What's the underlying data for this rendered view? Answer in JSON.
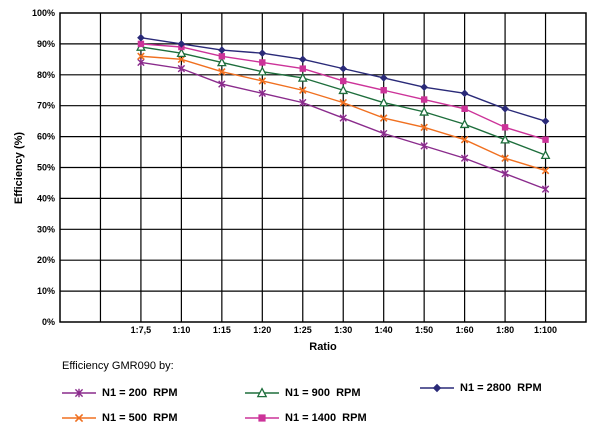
{
  "chart_data": {
    "type": "line",
    "title": "",
    "xlabel": "Ratio",
    "ylabel": "Efficiency (%)",
    "ylim": [
      0,
      100
    ],
    "yticks": [
      "0%",
      "10%",
      "20%",
      "30%",
      "40%",
      "50%",
      "60%",
      "70%",
      "80%",
      "90%",
      "100%"
    ],
    "categories": [
      "1:7,5",
      "1:10",
      "1:15",
      "1:20",
      "1:25",
      "1:30",
      "1:40",
      "1:50",
      "1:60",
      "1:80",
      "1:100"
    ],
    "grid": true,
    "legend_title": "Efficiency GMR090 by:",
    "legend_position": "bottom",
    "series": [
      {
        "name": "N1 = 200  RPM",
        "color": "#8a2b8c",
        "marker": "asterisk",
        "values": [
          84,
          82,
          77,
          74,
          71,
          66,
          61,
          57,
          53,
          48,
          43
        ]
      },
      {
        "name": "N1 = 500  RPM",
        "color": "#f07020",
        "marker": "x",
        "values": [
          86,
          85,
          81,
          78,
          75,
          71,
          66,
          63,
          59,
          53,
          49
        ]
      },
      {
        "name": "N1 = 900  RPM",
        "color": "#1e6e3c",
        "marker": "triangle",
        "values": [
          89,
          87,
          84,
          81,
          79,
          75,
          71,
          68,
          64,
          59,
          54
        ]
      },
      {
        "name": "N1 = 1400  RPM",
        "color": "#cc3399",
        "marker": "square",
        "values": [
          90,
          89,
          86,
          84,
          82,
          78,
          75,
          72,
          69,
          63,
          59
        ]
      },
      {
        "name": "N1 = 2800  RPM",
        "color": "#2a2a78",
        "marker": "diamond",
        "values": [
          92,
          90,
          88,
          87,
          85,
          82,
          79,
          76,
          74,
          69,
          65
        ]
      }
    ]
  }
}
